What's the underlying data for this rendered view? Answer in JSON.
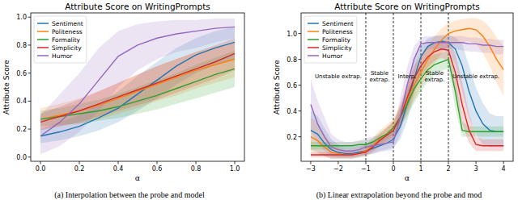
{
  "chart_data": [
    {
      "type": "line",
      "title": "Attribute Score on WritingPrompts",
      "x_label": "α",
      "y_label": "Attribute Score",
      "caption": "(a) Interpolation between the probe and model",
      "legend": "upper left",
      "grid": false,
      "xlim": [
        -0.05,
        1.05
      ],
      "ylim": [
        -0.03,
        1.03
      ],
      "xticks": [
        {
          "value": 0,
          "label": "0.0"
        },
        0.2,
        0.4,
        0.6,
        0.8,
        {
          "value": 1,
          "label": "1.0"
        }
      ],
      "yticks": [
        {
          "value": 0,
          "label": "0.0"
        },
        0.2,
        0.4,
        0.6,
        0.8,
        {
          "value": 1,
          "label": "1.0"
        }
      ],
      "x": [
        0,
        0.1,
        0.2,
        0.3,
        0.4,
        0.5,
        0.6,
        0.7,
        0.8,
        0.9,
        1.0
      ],
      "series": [
        {
          "name": "Sentiment",
          "color": "#1f77b4",
          "values": [
            0.15,
            0.18,
            0.22,
            0.28,
            0.35,
            0.45,
            0.55,
            0.65,
            0.73,
            0.78,
            0.82
          ],
          "lower": [
            0.1,
            0.12,
            0.15,
            0.19,
            0.25,
            0.33,
            0.42,
            0.52,
            0.6,
            0.66,
            0.7
          ],
          "upper": [
            0.2,
            0.25,
            0.3,
            0.38,
            0.47,
            0.58,
            0.68,
            0.78,
            0.85,
            0.9,
            0.93
          ]
        },
        {
          "name": "Politeness",
          "color": "#ff7f0e",
          "values": [
            0.27,
            0.3,
            0.33,
            0.37,
            0.42,
            0.47,
            0.52,
            0.57,
            0.62,
            0.66,
            0.7
          ],
          "lower": [
            0.2,
            0.22,
            0.24,
            0.27,
            0.31,
            0.35,
            0.4,
            0.44,
            0.49,
            0.53,
            0.57
          ],
          "upper": [
            0.35,
            0.38,
            0.42,
            0.47,
            0.53,
            0.59,
            0.65,
            0.7,
            0.75,
            0.79,
            0.82
          ]
        },
        {
          "name": "Formality",
          "color": "#2ca02c",
          "values": [
            0.27,
            0.29,
            0.31,
            0.33,
            0.36,
            0.4,
            0.44,
            0.49,
            0.54,
            0.59,
            0.63
          ],
          "lower": [
            0.22,
            0.23,
            0.24,
            0.26,
            0.28,
            0.31,
            0.34,
            0.38,
            0.42,
            0.46,
            0.5
          ],
          "upper": [
            0.33,
            0.35,
            0.38,
            0.41,
            0.45,
            0.5,
            0.55,
            0.6,
            0.66,
            0.71,
            0.76
          ]
        },
        {
          "name": "Simplicity",
          "color": "#d62728",
          "values": [
            0.25,
            0.29,
            0.33,
            0.38,
            0.43,
            0.48,
            0.53,
            0.58,
            0.63,
            0.68,
            0.74
          ],
          "lower": [
            0.19,
            0.22,
            0.25,
            0.29,
            0.33,
            0.37,
            0.41,
            0.46,
            0.51,
            0.56,
            0.62
          ],
          "upper": [
            0.31,
            0.36,
            0.41,
            0.47,
            0.53,
            0.59,
            0.65,
            0.7,
            0.75,
            0.8,
            0.85
          ]
        },
        {
          "name": "Humor",
          "color": "#9467bd",
          "values": [
            0.15,
            0.25,
            0.38,
            0.55,
            0.72,
            0.8,
            0.85,
            0.88,
            0.9,
            0.92,
            0.93
          ],
          "lower": [
            0.02,
            0.08,
            0.18,
            0.33,
            0.5,
            0.62,
            0.7,
            0.75,
            0.78,
            0.82,
            0.85
          ],
          "upper": [
            0.3,
            0.45,
            0.6,
            0.78,
            0.9,
            0.95,
            0.97,
            0.98,
            0.98,
            0.99,
            0.99
          ]
        }
      ]
    },
    {
      "type": "line",
      "title": "Attribute Score on WritingPrompts",
      "x_label": "α",
      "y_label": "Attribute Score",
      "caption": "(b) Linear extrapolation beyond the probe and mod",
      "legend": "upper left",
      "grid": false,
      "xlim": [
        -3.35,
        4.35
      ],
      "ylim": [
        0.01,
        1.16
      ],
      "xticks": [
        {
          "value": -3,
          "label": "−3"
        },
        {
          "value": -2,
          "label": "−2"
        },
        {
          "value": -1,
          "label": "−1"
        },
        0,
        1,
        2,
        3,
        4
      ],
      "yticks": [
        0.2,
        0.4,
        0.6,
        0.8,
        {
          "value": 1,
          "label": "1.0"
        }
      ],
      "regions": [
        {
          "label": "Unstable extrap.",
          "from": -3,
          "to": -1
        },
        {
          "label": "Stable extrap.",
          "from": -1,
          "to": 0
        },
        {
          "label": "Interp.",
          "from": 0,
          "to": 1
        },
        {
          "label": "Stable extrap.",
          "from": 1,
          "to": 2
        },
        {
          "label": "Unstable extrap.",
          "from": 2,
          "to": 4
        }
      ],
      "x": [
        -3,
        -2.75,
        -2.5,
        -2.25,
        -2,
        -1.75,
        -1.5,
        -1.25,
        -1,
        -0.75,
        -0.5,
        -0.25,
        0,
        0.25,
        0.5,
        0.75,
        1,
        1.25,
        1.5,
        1.75,
        2,
        2.25,
        2.5,
        2.75,
        3,
        3.25,
        3.5,
        3.75,
        4
      ],
      "series": [
        {
          "name": "Sentiment",
          "color": "#1f77b4",
          "values": [
            0.25,
            0.22,
            0.15,
            0.1,
            0.08,
            0.07,
            0.07,
            0.08,
            0.09,
            0.11,
            0.13,
            0.15,
            0.18,
            0.28,
            0.45,
            0.65,
            0.82,
            0.9,
            0.93,
            0.94,
            0.93,
            0.88,
            0.75,
            0.55,
            0.4,
            0.3,
            0.25,
            0.24,
            0.24
          ],
          "lower": [
            0.1,
            0.08,
            0.05,
            0.03,
            0.03,
            0.03,
            0.03,
            0.04,
            0.05,
            0.07,
            0.09,
            0.1,
            0.12,
            0.18,
            0.32,
            0.52,
            0.72,
            0.82,
            0.86,
            0.88,
            0.86,
            0.76,
            0.55,
            0.35,
            0.22,
            0.14,
            0.12,
            0.12,
            0.12
          ],
          "upper": [
            0.4,
            0.36,
            0.27,
            0.18,
            0.14,
            0.12,
            0.12,
            0.13,
            0.14,
            0.16,
            0.18,
            0.21,
            0.25,
            0.4,
            0.6,
            0.78,
            0.9,
            0.96,
            0.98,
            0.99,
            0.99,
            0.97,
            0.92,
            0.75,
            0.58,
            0.46,
            0.38,
            0.36,
            0.36
          ]
        },
        {
          "name": "Politeness",
          "color": "#ff7f0e",
          "values": [
            0.2,
            0.17,
            0.12,
            0.08,
            0.07,
            0.06,
            0.06,
            0.07,
            0.09,
            0.13,
            0.18,
            0.22,
            0.27,
            0.35,
            0.48,
            0.6,
            0.7,
            0.8,
            0.88,
            0.95,
            1.0,
            1.02,
            1.03,
            1.04,
            1.03,
            0.98,
            0.9,
            0.8,
            0.72
          ],
          "lower": [
            0.08,
            0.07,
            0.05,
            0.03,
            0.03,
            0.03,
            0.03,
            0.04,
            0.05,
            0.08,
            0.12,
            0.16,
            0.2,
            0.27,
            0.38,
            0.48,
            0.58,
            0.68,
            0.77,
            0.85,
            0.9,
            0.92,
            0.93,
            0.94,
            0.92,
            0.85,
            0.75,
            0.62,
            0.52
          ],
          "upper": [
            0.35,
            0.3,
            0.22,
            0.15,
            0.12,
            0.1,
            0.1,
            0.11,
            0.14,
            0.19,
            0.25,
            0.29,
            0.34,
            0.44,
            0.58,
            0.72,
            0.82,
            0.91,
            0.98,
            1.04,
            1.08,
            1.1,
            1.11,
            1.12,
            1.12,
            1.1,
            1.05,
            0.97,
            0.9
          ]
        },
        {
          "name": "Formality",
          "color": "#2ca02c",
          "values": [
            0.13,
            0.13,
            0.13,
            0.13,
            0.13,
            0.13,
            0.13,
            0.14,
            0.14,
            0.16,
            0.19,
            0.22,
            0.27,
            0.35,
            0.45,
            0.57,
            0.65,
            0.72,
            0.76,
            0.78,
            0.8,
            0.55,
            0.25,
            0.24,
            0.24,
            0.24,
            0.24,
            0.24,
            0.24
          ],
          "lower": [
            0.1,
            0.1,
            0.1,
            0.1,
            0.1,
            0.1,
            0.1,
            0.11,
            0.11,
            0.13,
            0.15,
            0.18,
            0.22,
            0.28,
            0.36,
            0.46,
            0.55,
            0.63,
            0.68,
            0.71,
            0.73,
            0.42,
            0.2,
            0.2,
            0.2,
            0.2,
            0.2,
            0.2,
            0.2
          ],
          "upper": [
            0.16,
            0.16,
            0.16,
            0.16,
            0.16,
            0.16,
            0.16,
            0.17,
            0.17,
            0.19,
            0.23,
            0.27,
            0.32,
            0.42,
            0.55,
            0.67,
            0.75,
            0.81,
            0.84,
            0.85,
            0.87,
            0.7,
            0.32,
            0.28,
            0.28,
            0.28,
            0.28,
            0.28,
            0.28
          ]
        },
        {
          "name": "Simplicity",
          "color": "#d62728",
          "values": [
            0.06,
            0.06,
            0.06,
            0.06,
            0.06,
            0.06,
            0.06,
            0.07,
            0.08,
            0.12,
            0.17,
            0.21,
            0.25,
            0.35,
            0.5,
            0.65,
            0.75,
            0.82,
            0.86,
            0.88,
            0.87,
            0.7,
            0.45,
            0.25,
            0.14,
            0.13,
            0.13,
            0.13,
            0.13
          ],
          "lower": [
            0.04,
            0.04,
            0.04,
            0.04,
            0.04,
            0.04,
            0.04,
            0.05,
            0.06,
            0.09,
            0.13,
            0.16,
            0.19,
            0.27,
            0.4,
            0.55,
            0.66,
            0.74,
            0.79,
            0.81,
            0.79,
            0.55,
            0.3,
            0.15,
            0.09,
            0.09,
            0.09,
            0.09,
            0.09
          ],
          "upper": [
            0.08,
            0.08,
            0.08,
            0.08,
            0.08,
            0.08,
            0.08,
            0.09,
            0.11,
            0.16,
            0.22,
            0.27,
            0.32,
            0.45,
            0.61,
            0.75,
            0.84,
            0.9,
            0.93,
            0.95,
            0.94,
            0.85,
            0.62,
            0.38,
            0.2,
            0.18,
            0.18,
            0.18,
            0.18
          ]
        },
        {
          "name": "Humor",
          "color": "#9467bd",
          "values": [
            0.45,
            0.3,
            0.2,
            0.12,
            0.1,
            0.09,
            0.09,
            0.1,
            0.12,
            0.13,
            0.14,
            0.15,
            0.16,
            0.35,
            0.6,
            0.8,
            0.92,
            0.93,
            0.93,
            0.93,
            0.93,
            0.93,
            0.93,
            0.92,
            0.92,
            0.91,
            0.91,
            0.9,
            0.9
          ],
          "lower": [
            0.25,
            0.15,
            0.09,
            0.05,
            0.04,
            0.04,
            0.04,
            0.05,
            0.06,
            0.07,
            0.08,
            0.09,
            0.1,
            0.22,
            0.45,
            0.68,
            0.85,
            0.88,
            0.88,
            0.88,
            0.88,
            0.88,
            0.87,
            0.86,
            0.86,
            0.85,
            0.85,
            0.84,
            0.84
          ],
          "upper": [
            0.65,
            0.48,
            0.35,
            0.22,
            0.18,
            0.16,
            0.16,
            0.17,
            0.19,
            0.2,
            0.21,
            0.22,
            0.24,
            0.5,
            0.74,
            0.9,
            0.97,
            0.98,
            0.98,
            0.98,
            0.98,
            0.98,
            0.98,
            0.97,
            0.97,
            0.96,
            0.96,
            0.95,
            0.95
          ]
        }
      ]
    }
  ]
}
